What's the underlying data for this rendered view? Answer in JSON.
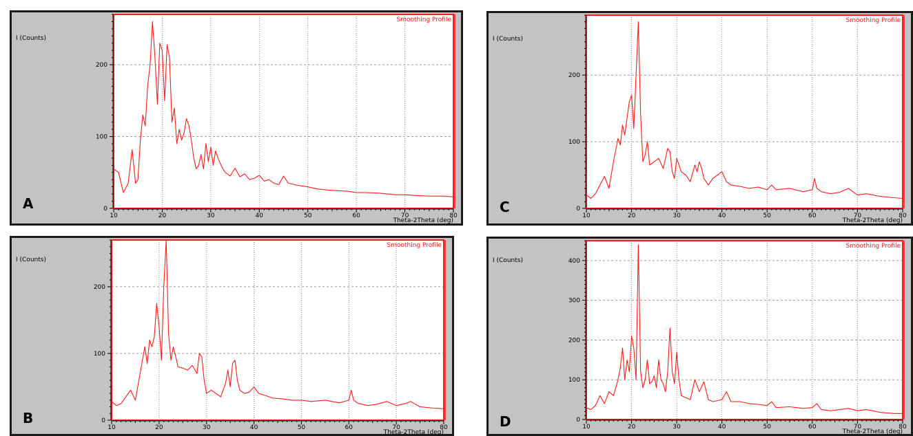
{
  "panels": [
    {
      "letter": "A",
      "chart_data": {
        "type": "line",
        "title": "",
        "legend": "Smoothing Profile",
        "ylabel": "I (Counts)",
        "xlabel": "Theta-2Theta (deg)",
        "xlim": [
          10,
          80
        ],
        "ylim": [
          0,
          270
        ],
        "xticks": [
          10,
          20,
          30,
          40,
          50,
          60,
          70,
          80
        ],
        "yticks": [
          0,
          100,
          200
        ],
        "color": "#ff1a1a",
        "x": [
          10,
          11,
          12,
          13,
          13.8,
          14.5,
          15,
          15.5,
          16,
          16.5,
          17,
          17.5,
          18,
          18.5,
          19,
          19.5,
          20,
          20.5,
          21,
          21.5,
          22,
          22.5,
          23,
          23.5,
          24,
          24.5,
          25,
          25.5,
          26,
          26.5,
          27,
          27.5,
          28,
          28.5,
          29,
          29.5,
          30,
          30.5,
          31,
          31.5,
          32,
          32.5,
          33,
          34,
          35,
          36,
          37,
          38,
          39,
          40,
          41,
          42,
          43,
          44,
          45,
          46,
          48,
          50,
          52,
          55,
          58,
          60,
          62,
          65,
          68,
          70,
          72,
          75,
          78,
          80
        ],
        "y": [
          55,
          50,
          22,
          35,
          82,
          35,
          40,
          95,
          130,
          115,
          170,
          200,
          260,
          210,
          145,
          230,
          220,
          150,
          228,
          210,
          120,
          140,
          90,
          110,
          95,
          105,
          125,
          115,
          95,
          70,
          55,
          60,
          75,
          55,
          90,
          65,
          85,
          60,
          80,
          70,
          62,
          55,
          50,
          45,
          56,
          44,
          48,
          40,
          42,
          46,
          38,
          40,
          35,
          33,
          45,
          35,
          32,
          30,
          27,
          25,
          24,
          22,
          22,
          21,
          19,
          19,
          18,
          17,
          17,
          16
        ]
      }
    },
    {
      "letter": "B",
      "chart_data": {
        "type": "line",
        "title": "",
        "legend": "Smoothing Profile",
        "ylabel": "I (Counts)",
        "xlabel": "Theta-2Theta (deg)",
        "xlim": [
          10,
          80
        ],
        "ylim": [
          0,
          270
        ],
        "xticks": [
          10,
          20,
          30,
          40,
          50,
          60,
          70,
          80
        ],
        "yticks": [
          0,
          100,
          200
        ],
        "color": "#ff1a1a",
        "x": [
          10,
          11,
          12,
          13,
          14,
          15,
          16,
          17,
          17.5,
          18,
          18.5,
          19,
          19.5,
          20,
          20.5,
          21,
          21.5,
          22,
          22.5,
          23,
          23.5,
          24,
          25,
          26,
          27,
          28,
          28.5,
          29,
          29.5,
          30,
          31,
          32,
          33,
          34,
          34.5,
          35,
          35.5,
          36,
          36.5,
          37,
          38,
          39,
          40,
          41,
          42,
          44,
          46,
          48,
          50,
          52,
          55,
          58,
          60,
          60.5,
          61,
          62,
          64,
          66,
          68,
          70,
          72,
          73,
          75,
          78,
          80
        ],
        "y": [
          28,
          22,
          25,
          35,
          45,
          30,
          70,
          110,
          85,
          120,
          110,
          125,
          175,
          140,
          90,
          200,
          270,
          130,
          90,
          110,
          95,
          80,
          78,
          75,
          82,
          70,
          100,
          95,
          60,
          40,
          45,
          40,
          35,
          55,
          75,
          50,
          85,
          90,
          60,
          45,
          40,
          42,
          50,
          40,
          38,
          33,
          32,
          30,
          30,
          28,
          30,
          26,
          30,
          45,
          30,
          25,
          22,
          24,
          28,
          22,
          25,
          28,
          20,
          18,
          17
        ]
      }
    },
    {
      "letter": "C",
      "chart_data": {
        "type": "line",
        "title": "",
        "legend": "Smoothing Profile",
        "ylabel": "I (Counts)",
        "xlabel": "Theta-2Theta (deg)",
        "xlim": [
          10,
          80
        ],
        "ylim": [
          0,
          290
        ],
        "xticks": [
          10,
          20,
          30,
          40,
          50,
          60,
          70,
          80
        ],
        "yticks": [
          0,
          100,
          200
        ],
        "color": "#ff1a1a",
        "x": [
          10,
          11,
          12,
          13,
          14,
          15,
          16,
          17,
          17.5,
          18,
          18.5,
          19,
          19.5,
          20,
          20.5,
          21,
          21.5,
          22,
          22.5,
          23,
          23.5,
          24,
          25,
          26,
          27,
          28,
          28.5,
          29,
          29.5,
          30,
          31,
          32,
          33,
          34,
          34.5,
          35,
          35.5,
          36,
          36.5,
          37,
          38,
          40,
          41,
          42,
          44,
          46,
          48,
          50,
          51,
          52,
          55,
          58,
          60,
          60.5,
          61,
          62,
          64,
          66,
          68,
          70,
          72,
          75,
          78,
          80
        ],
        "y": [
          20,
          15,
          22,
          35,
          48,
          30,
          70,
          105,
          95,
          125,
          110,
          135,
          160,
          170,
          120,
          200,
          280,
          140,
          70,
          80,
          100,
          65,
          70,
          75,
          60,
          90,
          85,
          55,
          45,
          75,
          55,
          50,
          40,
          65,
          55,
          70,
          60,
          45,
          40,
          35,
          45,
          55,
          40,
          35,
          33,
          30,
          32,
          28,
          35,
          28,
          30,
          25,
          28,
          45,
          30,
          25,
          22,
          24,
          30,
          20,
          22,
          18,
          16,
          15
        ]
      }
    },
    {
      "letter": "D",
      "chart_data": {
        "type": "line",
        "title": "",
        "legend": "Smoothing Profile",
        "ylabel": "I (Counts)",
        "xlabel": "Theta-2Theta (deg)",
        "xlim": [
          10,
          80
        ],
        "ylim": [
          0,
          450
        ],
        "xticks": [
          10,
          20,
          30,
          40,
          50,
          60,
          70,
          80
        ],
        "yticks": [
          0,
          100,
          200,
          300,
          400
        ],
        "color": "#ff1a1a",
        "x": [
          10,
          11,
          12,
          13,
          14,
          15,
          16,
          17,
          17.5,
          18,
          18.5,
          19,
          19.5,
          20,
          20.5,
          21,
          21.5,
          22,
          22.5,
          23,
          23.5,
          24,
          24.5,
          25,
          25.5,
          26,
          26.5,
          27,
          27.5,
          28,
          28.5,
          29,
          29.5,
          30,
          30.5,
          31,
          32,
          33,
          34,
          35,
          36,
          37,
          38,
          40,
          41,
          42,
          44,
          46,
          48,
          50,
          51,
          52,
          55,
          58,
          60,
          61,
          62,
          64,
          66,
          68,
          70,
          72,
          75,
          78,
          80
        ],
        "y": [
          30,
          25,
          35,
          60,
          40,
          70,
          60,
          100,
          130,
          180,
          100,
          150,
          120,
          210,
          180,
          100,
          440,
          120,
          80,
          100,
          150,
          90,
          95,
          110,
          80,
          150,
          100,
          90,
          70,
          120,
          230,
          120,
          90,
          170,
          100,
          60,
          55,
          50,
          100,
          70,
          95,
          50,
          45,
          50,
          70,
          45,
          45,
          40,
          38,
          35,
          45,
          30,
          32,
          28,
          30,
          40,
          25,
          22,
          25,
          28,
          22,
          25,
          18,
          15,
          15
        ]
      }
    }
  ]
}
